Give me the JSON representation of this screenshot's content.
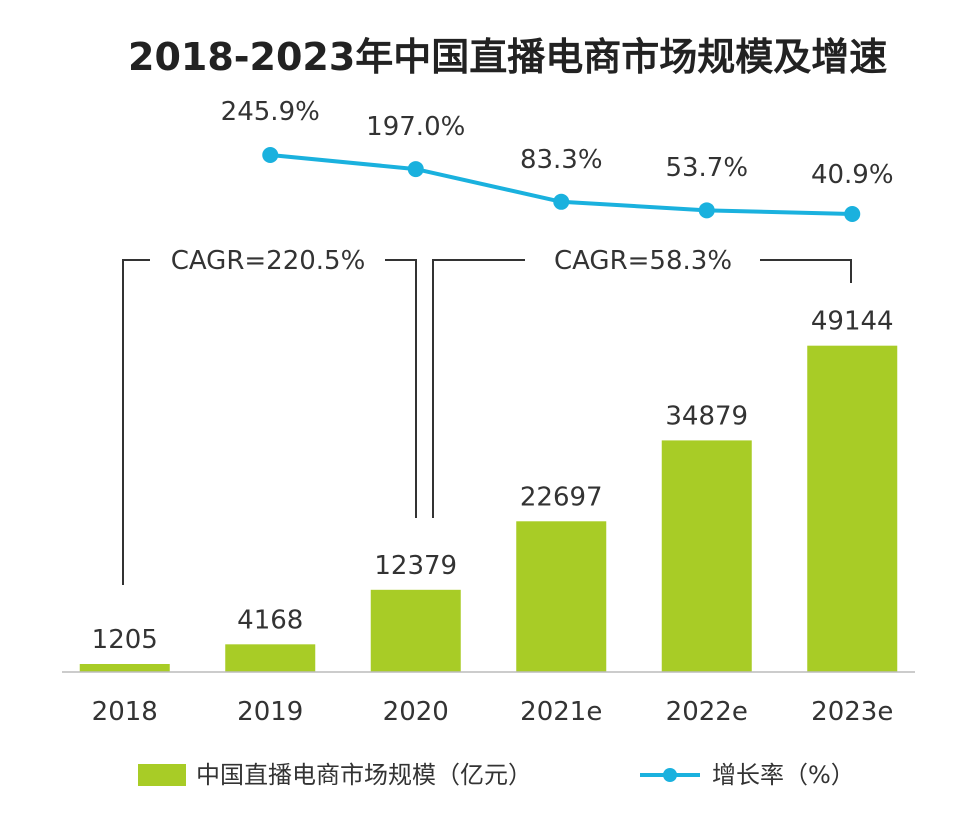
{
  "chart_data": {
    "type": "bar",
    "title": "2018-2023年中国直播电商市场规模及增速",
    "categories": [
      "2018",
      "2019",
      "2020",
      "2021e",
      "2022e",
      "2023e"
    ],
    "series": [
      {
        "name": "中国直播电商市场规模（亿元）",
        "type": "bar",
        "values": [
          1205,
          4168,
          12379,
          22697,
          34879,
          49144
        ],
        "labels": [
          "1205",
          "4168",
          "12379",
          "22697",
          "34879",
          "49144"
        ],
        "color": "#A8CC26"
      },
      {
        "name": "增长率（%）",
        "type": "line",
        "values": [
          null,
          245.9,
          197.0,
          83.3,
          53.7,
          40.9
        ],
        "labels": [
          "",
          "245.9%",
          "197.0%",
          "83.3%",
          "53.7%",
          "40.9%"
        ],
        "color": "#1AB1DE"
      }
    ],
    "annotations": [
      {
        "text": "CAGR=220.5%",
        "from": "2018",
        "to": "2020"
      },
      {
        "text": "CAGR=58.3%",
        "from": "2020",
        "to": "2023e"
      }
    ],
    "ylim": [
      0,
      50000
    ],
    "grid": false,
    "legend_position": "bottom"
  }
}
